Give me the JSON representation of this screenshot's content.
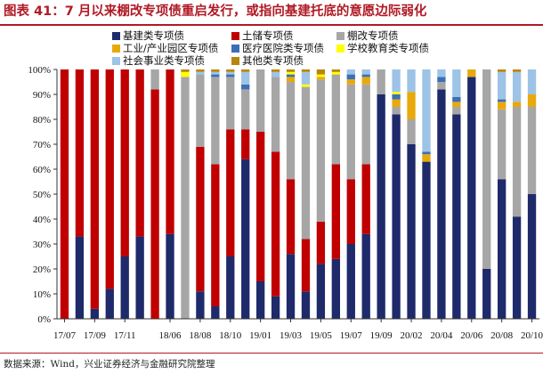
{
  "title": "图表 41：7 月以来棚改专项债重启发行，或指向基建托底的意愿边际弱化",
  "source": "数据来源：Wind，兴业证券经济与金融研究院整理",
  "chart_data": {
    "type": "bar",
    "stacked": true,
    "ylim": [
      0,
      100
    ],
    "yunit": "%",
    "yticks": [
      "0%",
      "10%",
      "20%",
      "30%",
      "40%",
      "50%",
      "60%",
      "70%",
      "80%",
      "90%",
      "100%"
    ],
    "xticks": [
      "17/07",
      "17/09",
      "17/11",
      "18/06",
      "18/08",
      "18/10",
      "19/01",
      "19/03",
      "19/05",
      "19/07",
      "19/09",
      "20/02",
      "20/04",
      "20/06",
      "20/08",
      "20/10"
    ],
    "legend_position": "top",
    "categories": [
      "17/07",
      "17/08",
      "17/09",
      "17/10",
      "17/11",
      "17/12",
      "18/05",
      "18/06",
      "18/07",
      "18/08",
      "18/09",
      "18/10",
      "18/11",
      "19/01",
      "19/02",
      "19/03",
      "19/04",
      "19/05",
      "19/06",
      "19/07",
      "19/08",
      "19/09",
      "19/10",
      "20/02",
      "20/03",
      "20/04",
      "20/05",
      "20/06",
      "20/07",
      "20/08",
      "20/09",
      "20/10"
    ],
    "series": [
      {
        "name": "基建类专项债",
        "color": "#1f2a6b",
        "values": [
          0,
          33,
          4,
          12,
          25,
          33,
          0,
          34,
          0,
          11,
          5,
          25,
          64,
          15,
          9,
          26,
          11,
          22,
          24,
          30,
          34,
          90,
          82,
          70,
          63,
          92,
          82,
          97,
          20,
          56,
          41,
          50
        ]
      },
      {
        "name": "土储专项债",
        "color": "#c00000",
        "values": [
          100,
          67,
          96,
          88,
          75,
          67,
          92,
          66,
          0,
          58,
          57,
          51,
          12,
          60,
          58,
          30,
          21,
          17,
          38,
          26,
          28,
          0,
          0,
          0,
          0,
          0,
          0,
          0,
          0,
          0,
          0,
          0
        ]
      },
      {
        "name": "棚改专项债",
        "color": "#a6a6a6",
        "values": [
          0,
          0,
          0,
          0,
          0,
          0,
          8,
          0,
          97,
          29,
          35,
          21,
          16,
          25,
          30,
          39,
          61,
          57,
          36,
          38,
          32,
          10,
          3,
          10,
          0,
          3,
          3,
          0,
          80,
          28,
          44,
          35
        ]
      },
      {
        "name": "工业/产业园区专项债",
        "color": "#e8a90c",
        "values": [
          0,
          0,
          0,
          0,
          0,
          0,
          0,
          0,
          0,
          0,
          0,
          0,
          0,
          0,
          0,
          2,
          0,
          1,
          0,
          2,
          3,
          0,
          3,
          11,
          3,
          0,
          2,
          3,
          0,
          3,
          2,
          5
        ]
      },
      {
        "name": "医疗医院类专项债",
        "color": "#3b6fb6",
        "values": [
          0,
          0,
          0,
          0,
          0,
          0,
          0,
          0,
          0,
          0,
          1,
          1,
          2,
          0,
          0,
          1,
          0,
          0,
          0,
          2,
          1,
          0,
          2,
          0,
          1,
          2,
          2,
          0,
          0,
          1,
          0,
          0
        ]
      },
      {
        "name": "学校教育类专项债",
        "color": "#ffff00",
        "values": [
          0,
          0,
          0,
          0,
          0,
          0,
          0,
          0,
          2,
          0,
          0,
          0,
          0,
          0,
          0,
          1,
          1,
          1,
          1,
          0,
          0,
          0,
          1,
          0,
          0,
          0,
          0,
          0,
          0,
          0,
          0,
          0
        ]
      },
      {
        "name": "社会事业类专项债",
        "color": "#9dc3e6",
        "values": [
          0,
          0,
          0,
          0,
          0,
          0,
          0,
          0,
          0,
          1,
          1,
          1,
          5,
          0,
          2,
          0,
          5,
          0,
          0,
          2,
          2,
          0,
          9,
          9,
          33,
          3,
          11,
          0,
          0,
          11,
          12,
          10
        ]
      },
      {
        "name": "其他类专项债",
        "color": "#b8860b",
        "values": [
          0,
          0,
          0,
          0,
          0,
          0,
          0,
          0,
          1,
          1,
          1,
          1,
          1,
          0,
          1,
          1,
          1,
          2,
          1,
          0,
          0,
          0,
          0,
          0,
          0,
          0,
          0,
          0,
          0,
          1,
          1,
          0
        ]
      }
    ]
  }
}
